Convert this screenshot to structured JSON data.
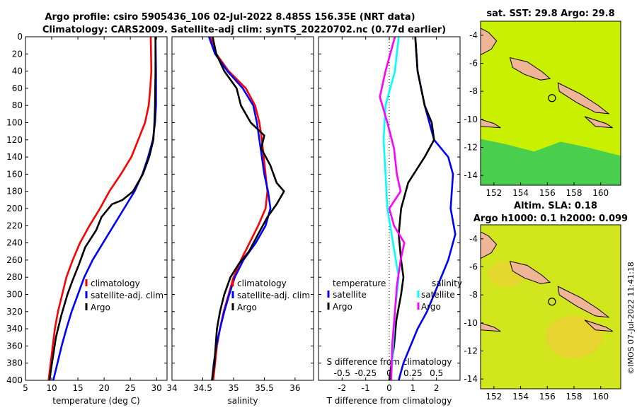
{
  "figure": {
    "title_line1": "Argo profile: csiro 5905436_106 02-Jul-2022 8.485S 156.35E (NRT data)",
    "title_line2": "Climatology: CARS2009. Satellite-adj clim: synTS_20220702.nc (0.77d earlier)",
    "watermark": "©IMOS 07-Jul-2022 11:41:18"
  },
  "chart_data": [
    {
      "type": "line",
      "id": "temperature",
      "xlabel": "temperature (deg C)",
      "ylabel": "",
      "xlim": [
        5,
        32
      ],
      "ylim": [
        400,
        0
      ],
      "xticks": [
        5,
        10,
        15,
        20,
        25,
        30
      ],
      "yticks": [
        0,
        20,
        40,
        60,
        80,
        100,
        120,
        140,
        160,
        180,
        200,
        220,
        240,
        260,
        280,
        300,
        320,
        340,
        360,
        380,
        400
      ],
      "legend": [
        "climatology",
        "satellite-adj. clim",
        "Argo"
      ],
      "series": [
        {
          "name": "climatology",
          "color": "#ff0000",
          "points": [
            [
              28.9,
              0
            ],
            [
              29.0,
              40
            ],
            [
              28.8,
              60
            ],
            [
              28.5,
              80
            ],
            [
              27.8,
              100
            ],
            [
              26.5,
              120
            ],
            [
              25.2,
              140
            ],
            [
              23.2,
              160
            ],
            [
              21.0,
              180
            ],
            [
              19.2,
              200
            ],
            [
              17.2,
              220
            ],
            [
              15.4,
              240
            ],
            [
              14.0,
              260
            ],
            [
              12.8,
              280
            ],
            [
              12.0,
              300
            ],
            [
              11.2,
              320
            ],
            [
              10.6,
              340
            ],
            [
              10.2,
              360
            ],
            [
              9.8,
              380
            ],
            [
              9.4,
              400
            ]
          ]
        },
        {
          "name": "satellite-adj. clim",
          "color": "#0000ff",
          "points": [
            [
              29.8,
              0
            ],
            [
              29.9,
              40
            ],
            [
              29.9,
              80
            ],
            [
              29.7,
              100
            ],
            [
              29.3,
              120
            ],
            [
              28.4,
              140
            ],
            [
              27.3,
              160
            ],
            [
              25.8,
              180
            ],
            [
              23.8,
              200
            ],
            [
              21.8,
              220
            ],
            [
              19.8,
              240
            ],
            [
              17.8,
              260
            ],
            [
              16.2,
              280
            ],
            [
              15.0,
              300
            ],
            [
              13.8,
              320
            ],
            [
              12.8,
              340
            ],
            [
              11.9,
              360
            ],
            [
              11.1,
              380
            ],
            [
              10.3,
              400
            ]
          ]
        },
        {
          "name": "Argo",
          "color": "#000000",
          "points": [
            [
              29.8,
              0
            ],
            [
              29.8,
              40
            ],
            [
              29.7,
              80
            ],
            [
              29.6,
              100
            ],
            [
              29.4,
              120
            ],
            [
              28.6,
              140
            ],
            [
              27.4,
              160
            ],
            [
              25.5,
              180
            ],
            [
              23.5,
              190
            ],
            [
              21.5,
              195
            ],
            [
              19.5,
              210
            ],
            [
              18.5,
              225
            ],
            [
              16.4,
              245
            ],
            [
              15.2,
              265
            ],
            [
              13.9,
              285
            ],
            [
              13.0,
              300
            ],
            [
              11.8,
              325
            ],
            [
              10.8,
              350
            ],
            [
              10.3,
              370
            ],
            [
              9.8,
              390
            ],
            [
              9.6,
              400
            ]
          ]
        }
      ]
    },
    {
      "type": "line",
      "id": "salinity",
      "xlabel": "salinity",
      "ylabel": "",
      "xlim": [
        34.0,
        36.3
      ],
      "ylim": [
        400,
        0
      ],
      "xticks": [
        34,
        34.5,
        35,
        35.5,
        36
      ],
      "legend": [
        "climatology",
        "satellite-adj. clim",
        "Argo"
      ],
      "series": [
        {
          "name": "climatology",
          "color": "#ff0000",
          "points": [
            [
              34.62,
              0
            ],
            [
              34.72,
              20
            ],
            [
              34.92,
              40
            ],
            [
              35.2,
              60
            ],
            [
              35.35,
              80
            ],
            [
              35.42,
              100
            ],
            [
              35.46,
              120
            ],
            [
              35.49,
              140
            ],
            [
              35.52,
              160
            ],
            [
              35.55,
              180
            ],
            [
              35.52,
              200
            ],
            [
              35.4,
              220
            ],
            [
              35.26,
              240
            ],
            [
              35.12,
              260
            ],
            [
              35.0,
              280
            ],
            [
              34.92,
              300
            ],
            [
              34.84,
              320
            ],
            [
              34.78,
              340
            ],
            [
              34.73,
              360
            ],
            [
              34.7,
              380
            ],
            [
              34.67,
              400
            ]
          ]
        },
        {
          "name": "satellite-adj. clim",
          "color": "#0000ff",
          "points": [
            [
              34.6,
              0
            ],
            [
              34.7,
              20
            ],
            [
              34.9,
              40
            ],
            [
              35.15,
              60
            ],
            [
              35.32,
              80
            ],
            [
              35.38,
              100
            ],
            [
              35.42,
              120
            ],
            [
              35.46,
              140
            ],
            [
              35.5,
              160
            ],
            [
              35.56,
              180
            ],
            [
              35.6,
              200
            ],
            [
              35.52,
              220
            ],
            [
              35.36,
              240
            ],
            [
              35.16,
              260
            ],
            [
              35.02,
              280
            ],
            [
              34.93,
              300
            ],
            [
              34.85,
              320
            ],
            [
              34.78,
              340
            ],
            [
              34.72,
              360
            ],
            [
              34.68,
              380
            ],
            [
              34.65,
              400
            ]
          ]
        },
        {
          "name": "Argo",
          "color": "#000000",
          "points": [
            [
              34.66,
              0
            ],
            [
              34.72,
              20
            ],
            [
              34.85,
              40
            ],
            [
              35.05,
              60
            ],
            [
              35.12,
              80
            ],
            [
              35.28,
              100
            ],
            [
              35.5,
              115
            ],
            [
              35.45,
              130
            ],
            [
              35.6,
              150
            ],
            [
              35.7,
              170
            ],
            [
              35.82,
              180
            ],
            [
              35.7,
              195
            ],
            [
              35.55,
              210
            ],
            [
              35.4,
              230
            ],
            [
              35.25,
              250
            ],
            [
              35.08,
              265
            ],
            [
              34.95,
              280
            ],
            [
              34.85,
              300
            ],
            [
              34.78,
              320
            ],
            [
              34.73,
              340
            ],
            [
              34.71,
              360
            ],
            [
              34.69,
              380
            ],
            [
              34.65,
              400
            ]
          ]
        }
      ]
    },
    {
      "type": "line",
      "id": "difference",
      "xlabel": "T difference from climatology",
      "xlabel2": "S difference from climatology",
      "ylabel": "",
      "xlim": [
        -3,
        3
      ],
      "x2lim": [
        -0.75,
        0.75
      ],
      "ylim": [
        400,
        0
      ],
      "xticks": [
        -2,
        -1,
        0,
        1,
        2
      ],
      "x2ticks": [
        -0.5,
        -0.25,
        0,
        0.25,
        0.5
      ],
      "x2ticklabels": [
        "-0.5",
        "-0.25",
        "0",
        "0.25",
        "0.5"
      ],
      "legend_temperature_header": "temperature",
      "legend_salinity_header": "salinity",
      "legend_temperature": [
        "satellite",
        "Argo"
      ],
      "legend_salinity": [
        "satellite",
        "Argo"
      ],
      "series": [
        {
          "name": "T satellite",
          "axis": "T",
          "color": "#0000ff",
          "points": [
            [
              1.1,
              0
            ],
            [
              1.2,
              40
            ],
            [
              1.5,
              80
            ],
            [
              1.9,
              120
            ],
            [
              2.5,
              140
            ],
            [
              2.7,
              160
            ],
            [
              2.6,
              200
            ],
            [
              2.8,
              230
            ],
            [
              2.5,
              260
            ],
            [
              2.2,
              280
            ],
            [
              1.9,
              300
            ],
            [
              1.6,
              320
            ],
            [
              1.2,
              340
            ],
            [
              0.9,
              360
            ],
            [
              0.6,
              380
            ],
            [
              0.4,
              400
            ]
          ]
        },
        {
          "name": "T Argo",
          "axis": "T",
          "color": "#000000",
          "points": [
            [
              1.1,
              0
            ],
            [
              1.2,
              40
            ],
            [
              1.5,
              80
            ],
            [
              1.8,
              100
            ],
            [
              1.9,
              120
            ],
            [
              1.5,
              140
            ],
            [
              0.8,
              170
            ],
            [
              0.5,
              200
            ],
            [
              0.4,
              230
            ],
            [
              0.5,
              260
            ],
            [
              0.6,
              280
            ],
            [
              0.5,
              300
            ],
            [
              0.3,
              330
            ],
            [
              0.2,
              360
            ],
            [
              0.1,
              380
            ],
            [
              0,
              400
            ]
          ]
        },
        {
          "name": "S satellite",
          "axis": "S",
          "color": "#00ffff",
          "points": [
            [
              0.1,
              0
            ],
            [
              0.06,
              40
            ],
            [
              -0.04,
              80
            ],
            [
              -0.06,
              120
            ],
            [
              -0.04,
              160
            ],
            [
              -0.02,
              200
            ],
            [
              0.04,
              240
            ],
            [
              0.1,
              280
            ],
            [
              0.06,
              320
            ],
            [
              0.04,
              360
            ],
            [
              0.02,
              400
            ]
          ]
        },
        {
          "name": "S Argo",
          "axis": "S",
          "color": "#ff00ff",
          "points": [
            [
              0.06,
              0
            ],
            [
              -0.04,
              40
            ],
            [
              -0.1,
              70
            ],
            [
              -0.02,
              100
            ],
            [
              0.05,
              130
            ],
            [
              0.08,
              160
            ],
            [
              0.12,
              180
            ],
            [
              0.0,
              200
            ],
            [
              0.05,
              220
            ],
            [
              0.16,
              240
            ],
            [
              0.12,
              260
            ],
            [
              0.08,
              290
            ],
            [
              0.06,
              320
            ],
            [
              0.03,
              360
            ],
            [
              0.02,
              400
            ]
          ]
        }
      ]
    }
  ],
  "maps": [
    {
      "id": "sst",
      "title_line1": "sat. SST: 29.8 Argo: 29.8",
      "title_line2": "",
      "lon_ticks": [
        152,
        154,
        156,
        158,
        160
      ],
      "lat_ticks": [
        -4,
        -6,
        -8,
        -10,
        -12,
        -14
      ],
      "colors": {
        "base": "#c8f000",
        "deep": "#32c85a",
        "land": "#f0b496"
      }
    },
    {
      "id": "sla",
      "title_line1": "Altim. SLA: 0.18",
      "title_line2": "Argo h1000: 0.1 h2000: 0.099",
      "lon_ticks": [
        152,
        154,
        156,
        158,
        160
      ],
      "lat_ticks": [
        -4,
        -6,
        -8,
        -10,
        -12,
        -14
      ],
      "colors": {
        "base": "#d2e61e",
        "deep": "#f5c83c",
        "land": "#f0b496"
      }
    }
  ]
}
